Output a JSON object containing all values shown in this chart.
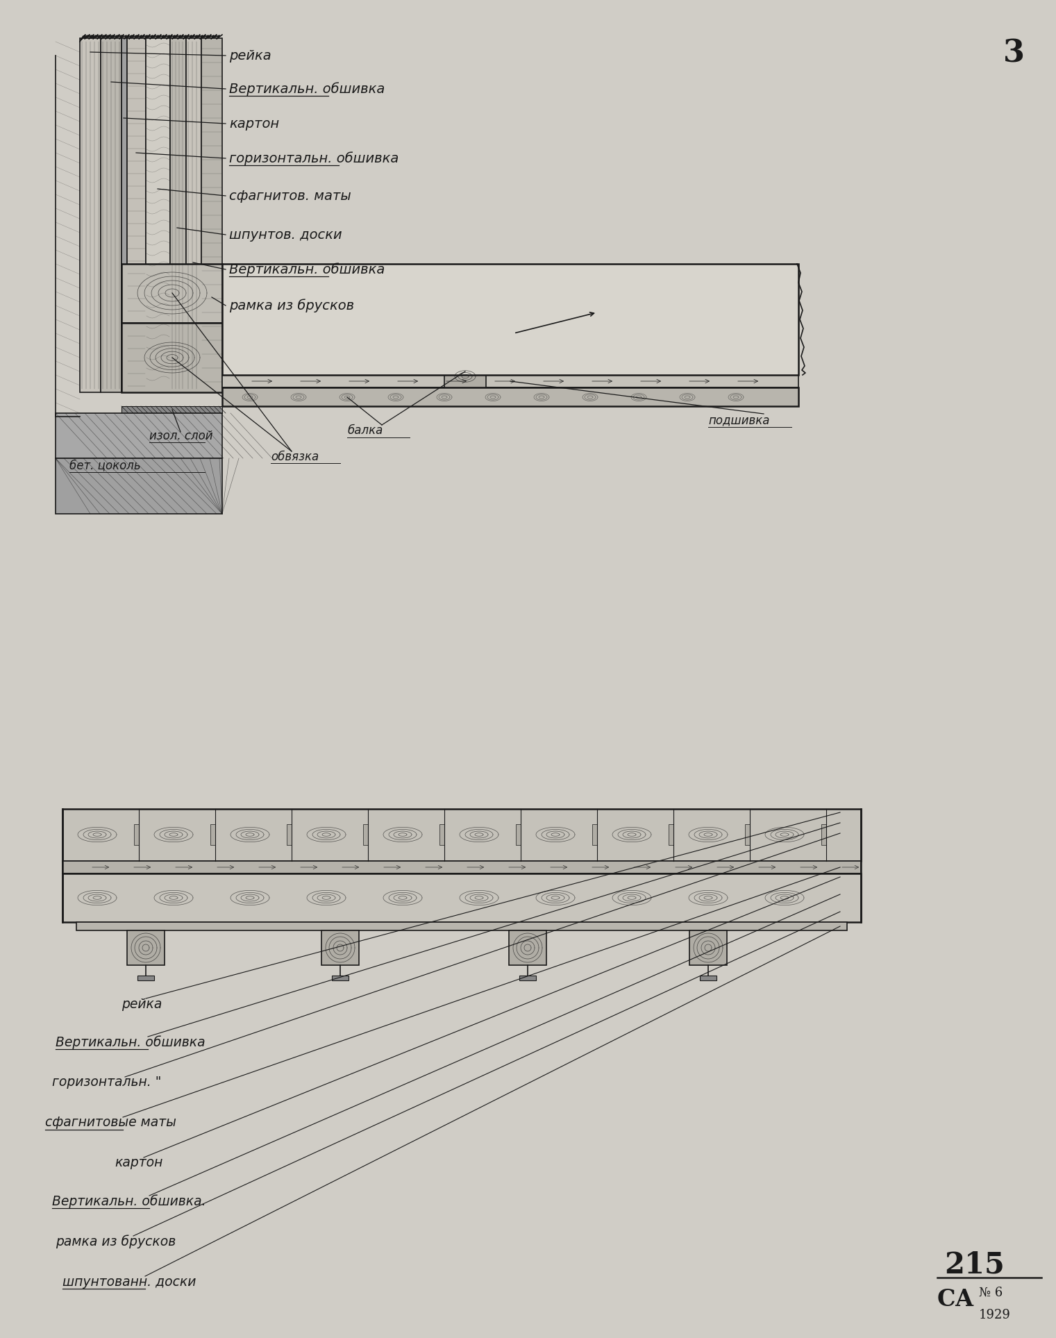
{
  "bg_color": "#d0cdc6",
  "page_number": "3",
  "bottom_number": "215",
  "bottom_ca": "СА",
  "bottom_no6": "№ 6",
  "bottom_year": "1929",
  "top_labels": [
    "рейка",
    "Вертикальн. обшивка",
    "картон",
    "горизонтальн. обшивка",
    "сфагнитов. маты",
    "шпунтов. доски",
    "Вертикальн. обшивка",
    "рамка из брусков"
  ],
  "bottom_labels_top_section": [
    [
      "изол. слой",
      215,
      625
    ],
    [
      "бет. цоколь",
      100,
      675
    ],
    [
      "балка",
      500,
      615
    ],
    [
      "обвязка",
      390,
      655
    ],
    [
      "подшивка",
      1020,
      600
    ]
  ],
  "bottom_section_labels": [
    "рейка",
    "Вертикальн. обшивка",
    "горизонтальн. \"",
    "сфагнитовые маты",
    "картон",
    "Вертикальн. обшивка.",
    "рамка из брусков",
    "шпунтованн. доски"
  ]
}
